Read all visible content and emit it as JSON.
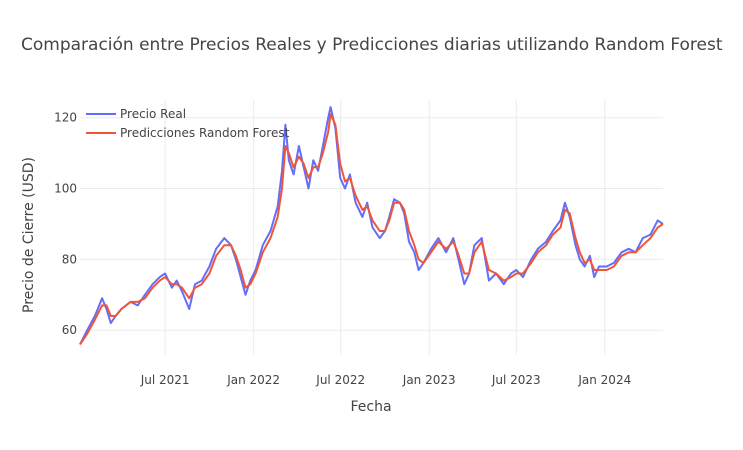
{
  "chart_data": {
    "type": "line",
    "title": "Comparación entre Precios Reales y Predicciones diarias utilizando Random Forest",
    "xlabel": "Fecha",
    "ylabel": "Precio de Cierre (USD)",
    "x_range": [
      "2021-01-05",
      "2024-05-01"
    ],
    "ylim": [
      53,
      125
    ],
    "x_ticks": [
      {
        "date": "2021-07-01",
        "label": "Jul 2021"
      },
      {
        "date": "2022-01-01",
        "label": "Jan 2022"
      },
      {
        "date": "2022-07-01",
        "label": "Jul 2022"
      },
      {
        "date": "2023-01-01",
        "label": "Jan 2023"
      },
      {
        "date": "2023-07-01",
        "label": "Jul 2023"
      },
      {
        "date": "2024-01-01",
        "label": "Jan 2024"
      }
    ],
    "y_ticks": [
      60,
      80,
      100,
      120
    ],
    "grid": true,
    "legend_position": "top-left",
    "series": [
      {
        "name": "Precio Real",
        "color": "#636efa",
        "points": [
          [
            "2021-01-05",
            56
          ],
          [
            "2021-01-20",
            60
          ],
          [
            "2021-02-05",
            64
          ],
          [
            "2021-02-20",
            69
          ],
          [
            "2021-03-01",
            66
          ],
          [
            "2021-03-10",
            62
          ],
          [
            "2021-03-20",
            64
          ],
          [
            "2021-04-01",
            66
          ],
          [
            "2021-04-20",
            68
          ],
          [
            "2021-05-05",
            67
          ],
          [
            "2021-05-20",
            70
          ],
          [
            "2021-06-05",
            73
          ],
          [
            "2021-06-20",
            75
          ],
          [
            "2021-07-01",
            76
          ],
          [
            "2021-07-15",
            72
          ],
          [
            "2021-07-25",
            74
          ],
          [
            "2021-08-05",
            71
          ],
          [
            "2021-08-20",
            66
          ],
          [
            "2021-09-01",
            73
          ],
          [
            "2021-09-15",
            74
          ],
          [
            "2021-10-01",
            78
          ],
          [
            "2021-10-15",
            83
          ],
          [
            "2021-11-01",
            86
          ],
          [
            "2021-11-15",
            84
          ],
          [
            "2021-11-25",
            80
          ],
          [
            "2021-12-05",
            75
          ],
          [
            "2021-12-15",
            70
          ],
          [
            "2021-12-25",
            74
          ],
          [
            "2022-01-05",
            77
          ],
          [
            "2022-01-20",
            84
          ],
          [
            "2022-02-05",
            88
          ],
          [
            "2022-02-20",
            95
          ],
          [
            "2022-03-01",
            105
          ],
          [
            "2022-03-08",
            118
          ],
          [
            "2022-03-15",
            108
          ],
          [
            "2022-03-25",
            104
          ],
          [
            "2022-04-05",
            112
          ],
          [
            "2022-04-15",
            106
          ],
          [
            "2022-04-25",
            100
          ],
          [
            "2022-05-05",
            108
          ],
          [
            "2022-05-15",
            105
          ],
          [
            "2022-05-25",
            112
          ],
          [
            "2022-06-05",
            120
          ],
          [
            "2022-06-10",
            123
          ],
          [
            "2022-06-20",
            117
          ],
          [
            "2022-06-30",
            103
          ],
          [
            "2022-07-10",
            100
          ],
          [
            "2022-07-20",
            104
          ],
          [
            "2022-08-01",
            96
          ],
          [
            "2022-08-15",
            92
          ],
          [
            "2022-08-25",
            96
          ],
          [
            "2022-09-05",
            89
          ],
          [
            "2022-09-20",
            86
          ],
          [
            "2022-10-01",
            88
          ],
          [
            "2022-10-10",
            92
          ],
          [
            "2022-10-20",
            97
          ],
          [
            "2022-11-01",
            96
          ],
          [
            "2022-11-10",
            93
          ],
          [
            "2022-11-20",
            85
          ],
          [
            "2022-12-01",
            82
          ],
          [
            "2022-12-10",
            77
          ],
          [
            "2022-12-20",
            79
          ],
          [
            "2023-01-05",
            83
          ],
          [
            "2023-01-20",
            86
          ],
          [
            "2023-02-05",
            82
          ],
          [
            "2023-02-20",
            86
          ],
          [
            "2023-03-01",
            81
          ],
          [
            "2023-03-15",
            73
          ],
          [
            "2023-03-25",
            76
          ],
          [
            "2023-04-05",
            84
          ],
          [
            "2023-04-20",
            86
          ],
          [
            "2023-05-05",
            74
          ],
          [
            "2023-05-20",
            76
          ],
          [
            "2023-06-05",
            73
          ],
          [
            "2023-06-20",
            76
          ],
          [
            "2023-07-01",
            77
          ],
          [
            "2023-07-15",
            75
          ],
          [
            "2023-08-01",
            80
          ],
          [
            "2023-08-15",
            83
          ],
          [
            "2023-09-01",
            85
          ],
          [
            "2023-09-15",
            88
          ],
          [
            "2023-10-01",
            91
          ],
          [
            "2023-10-10",
            96
          ],
          [
            "2023-10-20",
            92
          ],
          [
            "2023-11-01",
            84
          ],
          [
            "2023-11-10",
            80
          ],
          [
            "2023-11-20",
            78
          ],
          [
            "2023-12-01",
            81
          ],
          [
            "2023-12-10",
            75
          ],
          [
            "2023-12-20",
            78
          ],
          [
            "2024-01-05",
            78
          ],
          [
            "2024-01-20",
            79
          ],
          [
            "2024-02-05",
            82
          ],
          [
            "2024-02-20",
            83
          ],
          [
            "2024-03-05",
            82
          ],
          [
            "2024-03-20",
            86
          ],
          [
            "2024-04-05",
            87
          ],
          [
            "2024-04-20",
            91
          ],
          [
            "2024-05-01",
            90
          ]
        ]
      },
      {
        "name": "Predicciones Random Forest",
        "color": "#ef553b",
        "points": [
          [
            "2021-01-05",
            56
          ],
          [
            "2021-01-20",
            59
          ],
          [
            "2021-02-05",
            63
          ],
          [
            "2021-02-20",
            67
          ],
          [
            "2021-03-01",
            67
          ],
          [
            "2021-03-10",
            64
          ],
          [
            "2021-03-20",
            64
          ],
          [
            "2021-04-01",
            66
          ],
          [
            "2021-04-20",
            68
          ],
          [
            "2021-05-05",
            68
          ],
          [
            "2021-05-20",
            69
          ],
          [
            "2021-06-05",
            72
          ],
          [
            "2021-06-20",
            74
          ],
          [
            "2021-07-01",
            75
          ],
          [
            "2021-07-15",
            73
          ],
          [
            "2021-07-25",
            73
          ],
          [
            "2021-08-05",
            72
          ],
          [
            "2021-08-20",
            69
          ],
          [
            "2021-09-01",
            72
          ],
          [
            "2021-09-15",
            73
          ],
          [
            "2021-10-01",
            76
          ],
          [
            "2021-10-15",
            81
          ],
          [
            "2021-11-01",
            84
          ],
          [
            "2021-11-15",
            84
          ],
          [
            "2021-11-25",
            81
          ],
          [
            "2021-12-05",
            77
          ],
          [
            "2021-12-15",
            72
          ],
          [
            "2021-12-25",
            73
          ],
          [
            "2022-01-05",
            76
          ],
          [
            "2022-01-20",
            82
          ],
          [
            "2022-02-05",
            86
          ],
          [
            "2022-02-20",
            92
          ],
          [
            "2022-03-01",
            100
          ],
          [
            "2022-03-08",
            112
          ],
          [
            "2022-03-15",
            110
          ],
          [
            "2022-03-25",
            106
          ],
          [
            "2022-04-05",
            109
          ],
          [
            "2022-04-15",
            107
          ],
          [
            "2022-04-25",
            103
          ],
          [
            "2022-05-05",
            106
          ],
          [
            "2022-05-15",
            106
          ],
          [
            "2022-05-25",
            110
          ],
          [
            "2022-06-05",
            116
          ],
          [
            "2022-06-10",
            121
          ],
          [
            "2022-06-20",
            118
          ],
          [
            "2022-06-30",
            107
          ],
          [
            "2022-07-10",
            102
          ],
          [
            "2022-07-20",
            103
          ],
          [
            "2022-08-01",
            98
          ],
          [
            "2022-08-15",
            94
          ],
          [
            "2022-08-25",
            95
          ],
          [
            "2022-09-05",
            91
          ],
          [
            "2022-09-20",
            88
          ],
          [
            "2022-10-01",
            88
          ],
          [
            "2022-10-10",
            91
          ],
          [
            "2022-10-20",
            96
          ],
          [
            "2022-11-01",
            96
          ],
          [
            "2022-11-10",
            94
          ],
          [
            "2022-11-20",
            88
          ],
          [
            "2022-12-01",
            84
          ],
          [
            "2022-12-10",
            80
          ],
          [
            "2022-12-20",
            79
          ],
          [
            "2023-01-05",
            82
          ],
          [
            "2023-01-20",
            85
          ],
          [
            "2023-02-05",
            83
          ],
          [
            "2023-02-20",
            85
          ],
          [
            "2023-03-01",
            82
          ],
          [
            "2023-03-15",
            76
          ],
          [
            "2023-03-25",
            76
          ],
          [
            "2023-04-05",
            82
          ],
          [
            "2023-04-20",
            85
          ],
          [
            "2023-05-05",
            77
          ],
          [
            "2023-05-20",
            76
          ],
          [
            "2023-06-05",
            74
          ],
          [
            "2023-06-20",
            75
          ],
          [
            "2023-07-01",
            76
          ],
          [
            "2023-07-15",
            76
          ],
          [
            "2023-08-01",
            79
          ],
          [
            "2023-08-15",
            82
          ],
          [
            "2023-09-01",
            84
          ],
          [
            "2023-09-15",
            87
          ],
          [
            "2023-10-01",
            89
          ],
          [
            "2023-10-10",
            94
          ],
          [
            "2023-10-20",
            93
          ],
          [
            "2023-11-01",
            86
          ],
          [
            "2023-11-10",
            82
          ],
          [
            "2023-11-20",
            79
          ],
          [
            "2023-12-01",
            80
          ],
          [
            "2023-12-10",
            77
          ],
          [
            "2023-12-20",
            77
          ],
          [
            "2024-01-05",
            77
          ],
          [
            "2024-01-20",
            78
          ],
          [
            "2024-02-05",
            81
          ],
          [
            "2024-02-20",
            82
          ],
          [
            "2024-03-05",
            82
          ],
          [
            "2024-03-20",
            84
          ],
          [
            "2024-04-05",
            86
          ],
          [
            "2024-04-20",
            89
          ],
          [
            "2024-05-01",
            90
          ]
        ]
      }
    ]
  }
}
